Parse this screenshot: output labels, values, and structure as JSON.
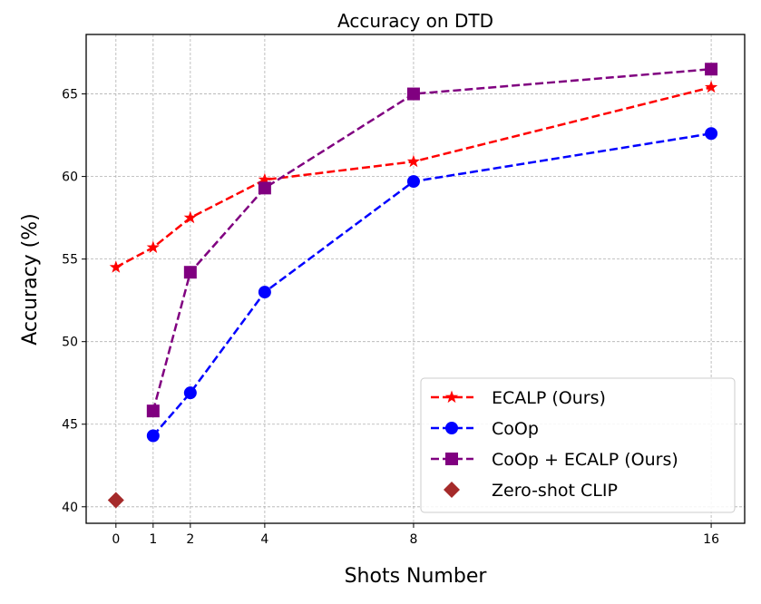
{
  "chart_data": {
    "type": "line",
    "title": "Accuracy on DTD",
    "xlabel": "Shots Number",
    "ylabel": "Accuracy (%)",
    "x_ticks": [
      0,
      1,
      2,
      4,
      8,
      16
    ],
    "y_ticks": [
      40,
      45,
      50,
      55,
      60,
      65
    ],
    "xlim": [
      -0.8,
      16.9
    ],
    "ylim": [
      39.0,
      68.6
    ],
    "grid": true,
    "legend_position": "lower-right",
    "series": [
      {
        "name": "ECALP (Ours)",
        "color": "#ff0000",
        "marker": "star",
        "linestyle": "dashed",
        "x": [
          0,
          1,
          2,
          4,
          8,
          16
        ],
        "y": [
          54.5,
          55.7,
          57.5,
          59.8,
          60.9,
          65.4
        ]
      },
      {
        "name": "CoOp",
        "color": "#0000ff",
        "marker": "circle",
        "linestyle": "dashed",
        "x": [
          1,
          2,
          4,
          8,
          16
        ],
        "y": [
          44.3,
          46.9,
          53.0,
          59.7,
          62.6
        ]
      },
      {
        "name": "CoOp + ECALP (Ours)",
        "color": "#800080",
        "marker": "square",
        "linestyle": "dashed",
        "x": [
          1,
          2,
          4,
          8,
          16
        ],
        "y": [
          45.8,
          54.2,
          59.3,
          65.0,
          66.5
        ]
      },
      {
        "name": "Zero-shot CLIP",
        "color": "#a52a2a",
        "marker": "diamond",
        "linestyle": "none",
        "x": [
          0
        ],
        "y": [
          40.4
        ]
      }
    ]
  }
}
